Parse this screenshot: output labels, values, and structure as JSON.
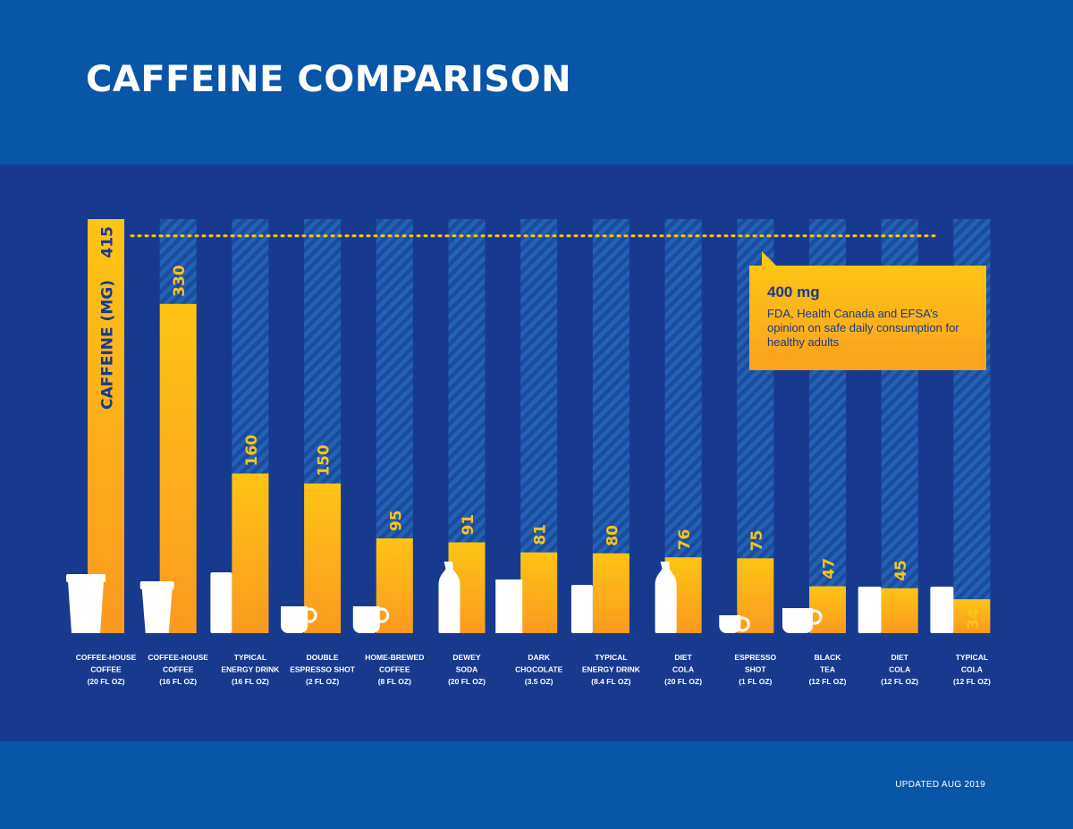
{
  "title": "CAFFEINE COMPARISON",
  "footer": {
    "updated": "UPDATED AUG 2019"
  },
  "callout": {
    "value": "400 mg",
    "text": "FDA, Health Canada and EFSA’s opinion on safe daily consumption for healthy adults"
  },
  "colors": {
    "background": "#0955a8",
    "panel": "#173a8f",
    "bar_top": "#fdc414",
    "bar_bottom": "#fb9a20",
    "label": "#ffffff",
    "value_label": "#fdc414"
  },
  "chart_data": {
    "type": "bar",
    "title": "CAFFEINE COMPARISON",
    "ylabel": "CAFFEINE (MG)",
    "ylim": [
      0,
      415
    ],
    "reference_line": {
      "value": 400,
      "label": "400 mg"
    },
    "categories": [
      [
        "COFFEE-HOUSE",
        "COFFEE",
        "(20 FL OZ)"
      ],
      [
        "COFFEE-HOUSE",
        "COFFEE",
        "(16 FL OZ)"
      ],
      [
        "TYPICAL",
        "ENERGY DRINK",
        "(16 FL OZ)"
      ],
      [
        "DOUBLE",
        "ESPRESSO SHOT",
        "(2 FL OZ)"
      ],
      [
        "HOME-BREWED",
        "COFFEE",
        "(8 FL OZ)"
      ],
      [
        "DEWEY",
        "SODA",
        "(20 FL  OZ)"
      ],
      [
        "DARK",
        "CHOCOLATE",
        "(3.5 OZ)"
      ],
      [
        "TYPICAL",
        "ENERGY DRINK",
        "(8.4 FL OZ)"
      ],
      [
        "DIET",
        "COLA",
        "(20 FL OZ)"
      ],
      [
        "ESPRESSO",
        "SHOT",
        "(1 FL OZ)"
      ],
      [
        "BLACK",
        "TEA",
        "(12 FL OZ)"
      ],
      [
        "DIET",
        "COLA",
        "(12 FL OZ)"
      ],
      [
        "TYPICAL",
        "COLA",
        "(12 FL OZ)"
      ]
    ],
    "values": [
      415,
      330,
      160,
      150,
      95,
      91,
      81,
      80,
      76,
      75,
      47,
      45,
      34
    ],
    "value_labels": [
      "415",
      "330",
      "160",
      "150",
      "95",
      "91",
      "81",
      "80",
      "76",
      "75",
      "47",
      "45",
      "34"
    ],
    "icons": [
      "cup-icon",
      "cup-icon",
      "can-icon",
      "mug-icon",
      "mug-icon",
      "bottle-icon",
      "bar-icon",
      "can-icon",
      "bottle-icon",
      "mug-icon",
      "mug-icon",
      "can-icon",
      "can-icon"
    ]
  }
}
